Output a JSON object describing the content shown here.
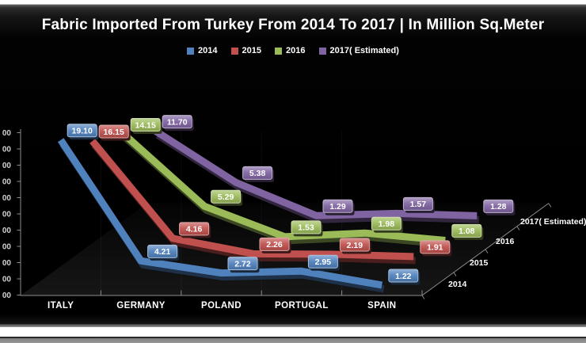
{
  "title": "Fabric Imported From Turkey From 2014 To 2017 | In Million Sq.Meter",
  "legend": {
    "items": [
      {
        "label": "2014",
        "color": "#4F81BD"
      },
      {
        "label": "2015",
        "color": "#C0504D"
      },
      {
        "label": "2016",
        "color": "#9BBB59"
      },
      {
        "label": "2017( Estimated)",
        "color": "#8064A2"
      }
    ]
  },
  "chart_data": {
    "type": "line",
    "style": "3d-ribbon",
    "title": "Fabric Imported From Turkey From 2014 To 2017 | In Million Sq.Meter",
    "categories": [
      "ITALY",
      "GERMANY",
      "POLAND",
      "PORTUGAL",
      "SPAIN"
    ],
    "series": [
      {
        "name": "2014",
        "color": "#4F81BD",
        "values": [
          19.1,
          4.21,
          2.72,
          2.95,
          1.22
        ]
      },
      {
        "name": "2015",
        "color": "#C0504D",
        "values": [
          16.15,
          4.16,
          2.26,
          2.19,
          1.91
        ]
      },
      {
        "name": "2016",
        "color": "#9BBB59",
        "values": [
          14.15,
          5.29,
          1.53,
          1.98,
          1.08
        ]
      },
      {
        "name": "2017( Estimated)",
        "color": "#8064A2",
        "values": [
          11.7,
          5.38,
          1.29,
          1.57,
          1.28
        ]
      }
    ],
    "depth_axis_labels": [
      "2014",
      "2015",
      "2016",
      "2017( Estimated)"
    ],
    "y_axis": {
      "min": 0,
      "max": 20,
      "step": 2,
      "tick_count": 11,
      "visible_tick_fragment": "00"
    },
    "value_label_format": "0.00",
    "legend_position": "top",
    "grid": false,
    "background": "#000000"
  }
}
